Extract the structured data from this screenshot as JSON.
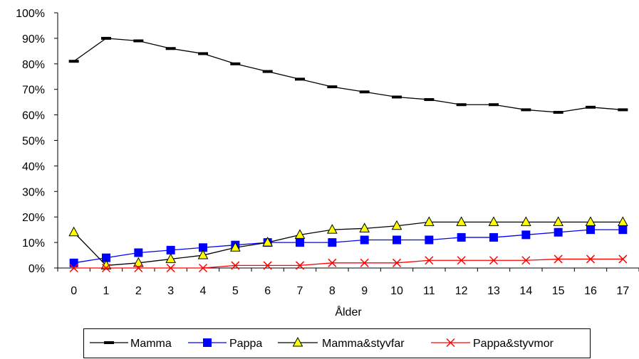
{
  "chart_data": {
    "type": "line",
    "title": "",
    "xlabel": "Ålder",
    "ylabel": "",
    "categories": [
      "0",
      "1",
      "2",
      "3",
      "4",
      "5",
      "6",
      "7",
      "8",
      "9",
      "10",
      "11",
      "12",
      "13",
      "14",
      "15",
      "16",
      "17"
    ],
    "ylim": [
      0,
      100
    ],
    "yticks": [
      0,
      10,
      20,
      30,
      40,
      50,
      60,
      70,
      80,
      90,
      100
    ],
    "ytick_labels": [
      "0%",
      "10%",
      "20%",
      "30%",
      "40%",
      "50%",
      "60%",
      "70%",
      "80%",
      "90%",
      "100%"
    ],
    "grid": false,
    "legend_position": "bottom",
    "series": [
      {
        "name": "Mamma",
        "color": "#000000",
        "marker": "dash",
        "values": [
          81,
          90,
          89,
          86,
          84,
          80,
          77,
          74,
          71,
          69,
          67,
          66,
          64,
          64,
          62,
          61,
          63,
          62
        ]
      },
      {
        "name": "Pappa",
        "color": "#0000FF",
        "marker": "square",
        "values": [
          2,
          4,
          6,
          7,
          8,
          9,
          10,
          10,
          10,
          11,
          11,
          11,
          12,
          12,
          13,
          14,
          15,
          15
        ]
      },
      {
        "name": "Mamma&styvfar",
        "color": "#000000",
        "marker": "triangle",
        "marker_fill": "#FFFF00",
        "values": [
          14,
          1,
          2,
          3.5,
          5,
          8,
          10,
          13,
          15,
          15.5,
          16.5,
          18,
          18,
          18,
          18,
          18,
          18,
          18
        ]
      },
      {
        "name": "Pappa&styvmor",
        "color": "#FF0000",
        "marker": "x",
        "values": [
          0,
          0,
          0,
          0,
          0,
          1,
          1,
          1,
          2,
          2,
          2,
          3,
          3,
          3,
          3,
          3.5,
          3.5,
          3.5
        ]
      }
    ]
  }
}
